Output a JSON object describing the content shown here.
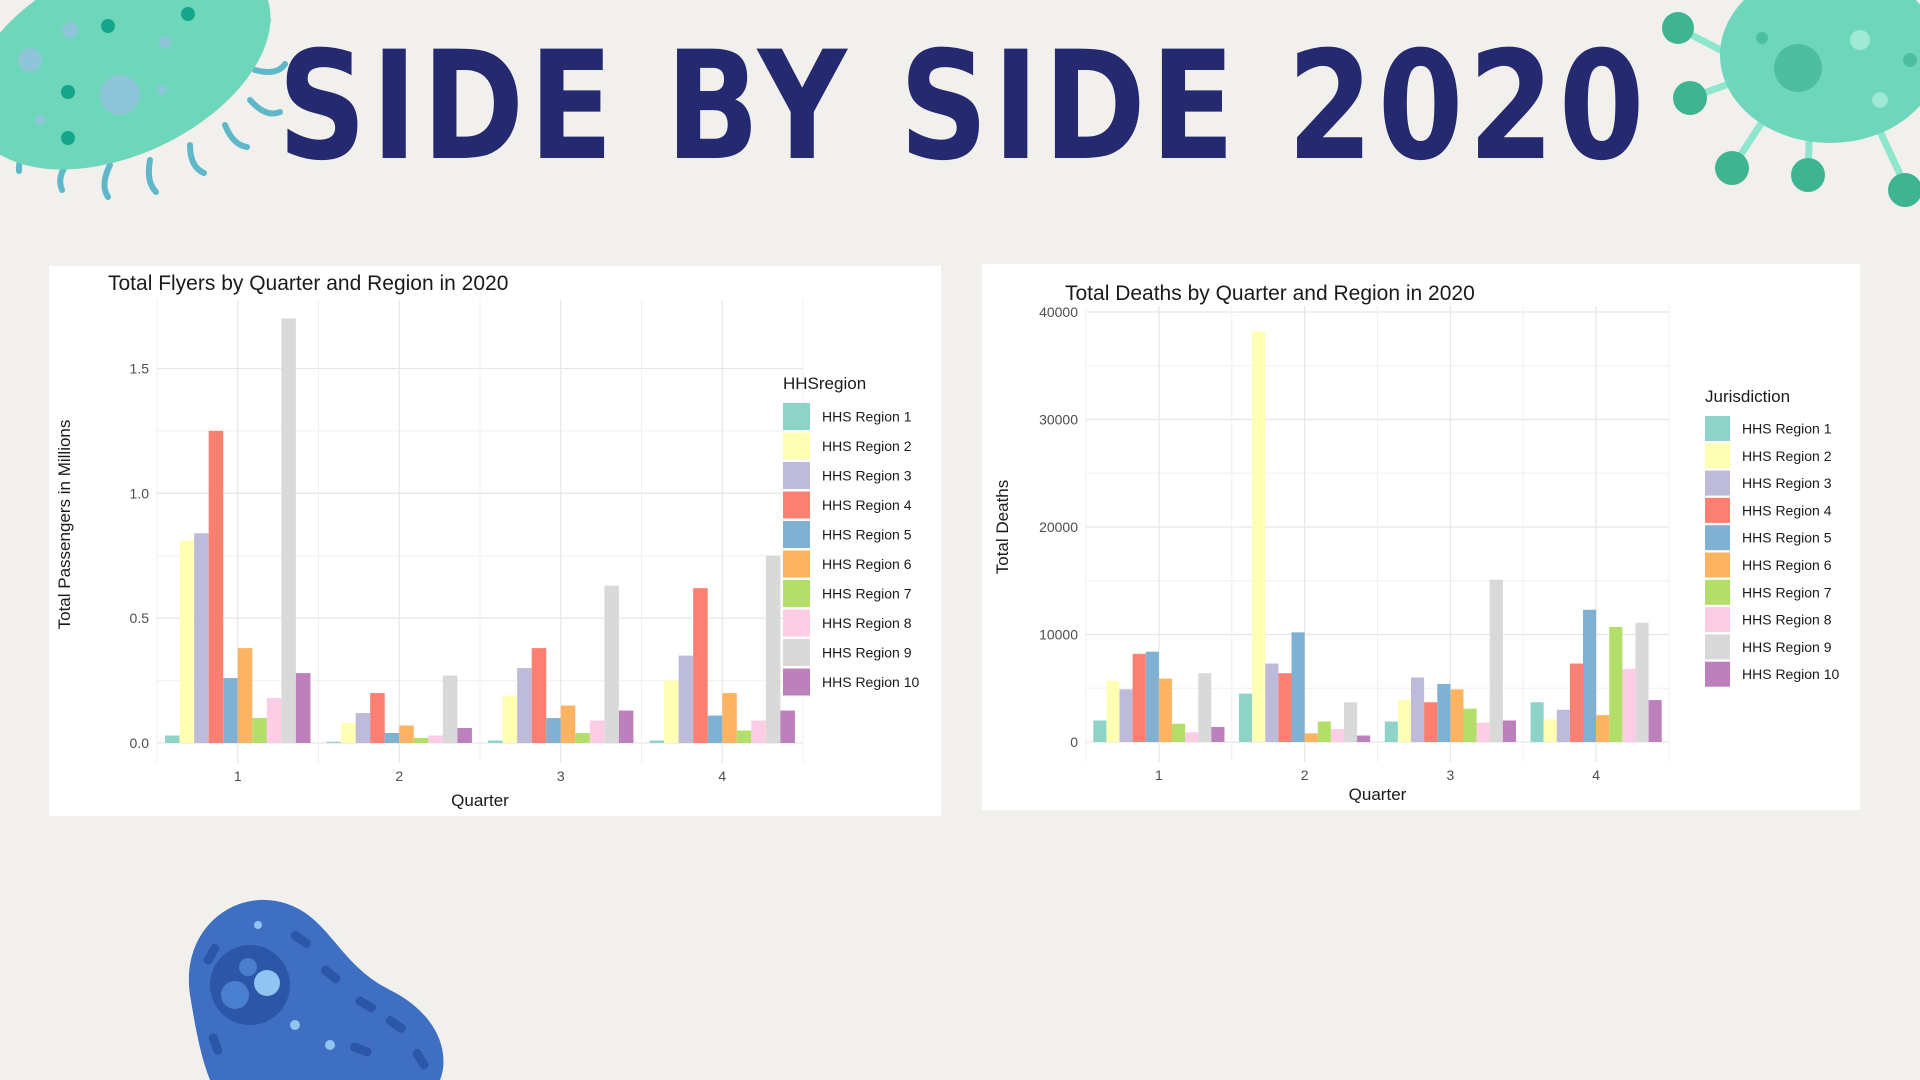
{
  "page": {
    "title": "SIDE BY SIDE 2020"
  },
  "colors": {
    "background": "#f1f0ec",
    "title": "#25296f",
    "regions": [
      "#8dd3c7",
      "#ffffb3",
      "#bebada",
      "#fb8072",
      "#80b1d3",
      "#fdb462",
      "#b3de69",
      "#fccde5",
      "#d9d9d9",
      "#bc80bd"
    ]
  },
  "decorations": [
    "green-bacteria-icon",
    "green-virus-icon",
    "blue-cell-icon"
  ],
  "chart_data": [
    {
      "type": "bar",
      "title": "Total Flyers by Quarter and Region in 2020",
      "xlabel": "Quarter",
      "ylabel": "Total Passengers in Millions",
      "legend_title": "HHSregion",
      "legend_position": "right",
      "grid": true,
      "categories": [
        "1",
        "2",
        "3",
        "4"
      ],
      "ylim": [
        0,
        1.75
      ],
      "yticks": [
        0,
        0.5,
        1.0,
        1.5
      ],
      "ytick_labels": [
        "0.0",
        "0.5",
        "1.0",
        "1.5"
      ],
      "series": [
        {
          "name": "HHS Region 1",
          "values": [
            0.03,
            0.005,
            0.01,
            0.01
          ]
        },
        {
          "name": "HHS Region 2",
          "values": [
            0.81,
            0.08,
            0.19,
            0.25
          ]
        },
        {
          "name": "HHS Region 3",
          "values": [
            0.84,
            0.12,
            0.3,
            0.35
          ]
        },
        {
          "name": "HHS Region 4",
          "values": [
            1.25,
            0.2,
            0.38,
            0.62
          ]
        },
        {
          "name": "HHS Region 5",
          "values": [
            0.26,
            0.04,
            0.1,
            0.11
          ]
        },
        {
          "name": "HHS Region 6",
          "values": [
            0.38,
            0.07,
            0.15,
            0.2
          ]
        },
        {
          "name": "HHS Region 7",
          "values": [
            0.1,
            0.02,
            0.04,
            0.05
          ]
        },
        {
          "name": "HHS Region 8",
          "values": [
            0.18,
            0.03,
            0.09,
            0.09
          ]
        },
        {
          "name": "HHS Region 9",
          "values": [
            1.7,
            0.27,
            0.63,
            0.75
          ]
        },
        {
          "name": "HHS Region 10",
          "values": [
            0.28,
            0.06,
            0.13,
            0.13
          ]
        }
      ]
    },
    {
      "type": "bar",
      "title": "Total Deaths by Quarter and Region in 2020",
      "xlabel": "Quarter",
      "ylabel": "Total Deaths",
      "legend_title": "Jurisdiction",
      "legend_position": "right",
      "grid": true,
      "categories": [
        "1",
        "2",
        "3",
        "4"
      ],
      "ylim": [
        0,
        40000
      ],
      "yticks": [
        0,
        10000,
        20000,
        30000,
        40000
      ],
      "ytick_labels": [
        "0",
        "10000",
        "20000",
        "30000",
        "40000"
      ],
      "series": [
        {
          "name": "HHS Region 1",
          "values": [
            2000,
            4500,
            1900,
            3700
          ]
        },
        {
          "name": "HHS Region 2",
          "values": [
            5700,
            38200,
            3900,
            2100
          ]
        },
        {
          "name": "HHS Region 3",
          "values": [
            4900,
            7300,
            6000,
            3000
          ]
        },
        {
          "name": "HHS Region 4",
          "values": [
            8200,
            6400,
            3700,
            7300
          ]
        },
        {
          "name": "HHS Region 5",
          "values": [
            8400,
            10200,
            5400,
            12300
          ]
        },
        {
          "name": "HHS Region 6",
          "values": [
            5900,
            800,
            4900,
            2500
          ]
        },
        {
          "name": "HHS Region 7",
          "values": [
            1700,
            1900,
            3100,
            10700
          ]
        },
        {
          "name": "HHS Region 8",
          "values": [
            900,
            1200,
            1800,
            6800
          ]
        },
        {
          "name": "HHS Region 9",
          "values": [
            6400,
            3700,
            15100,
            11100
          ]
        },
        {
          "name": "HHS Region 10",
          "values": [
            1400,
            600,
            2000,
            3900
          ]
        }
      ]
    }
  ]
}
